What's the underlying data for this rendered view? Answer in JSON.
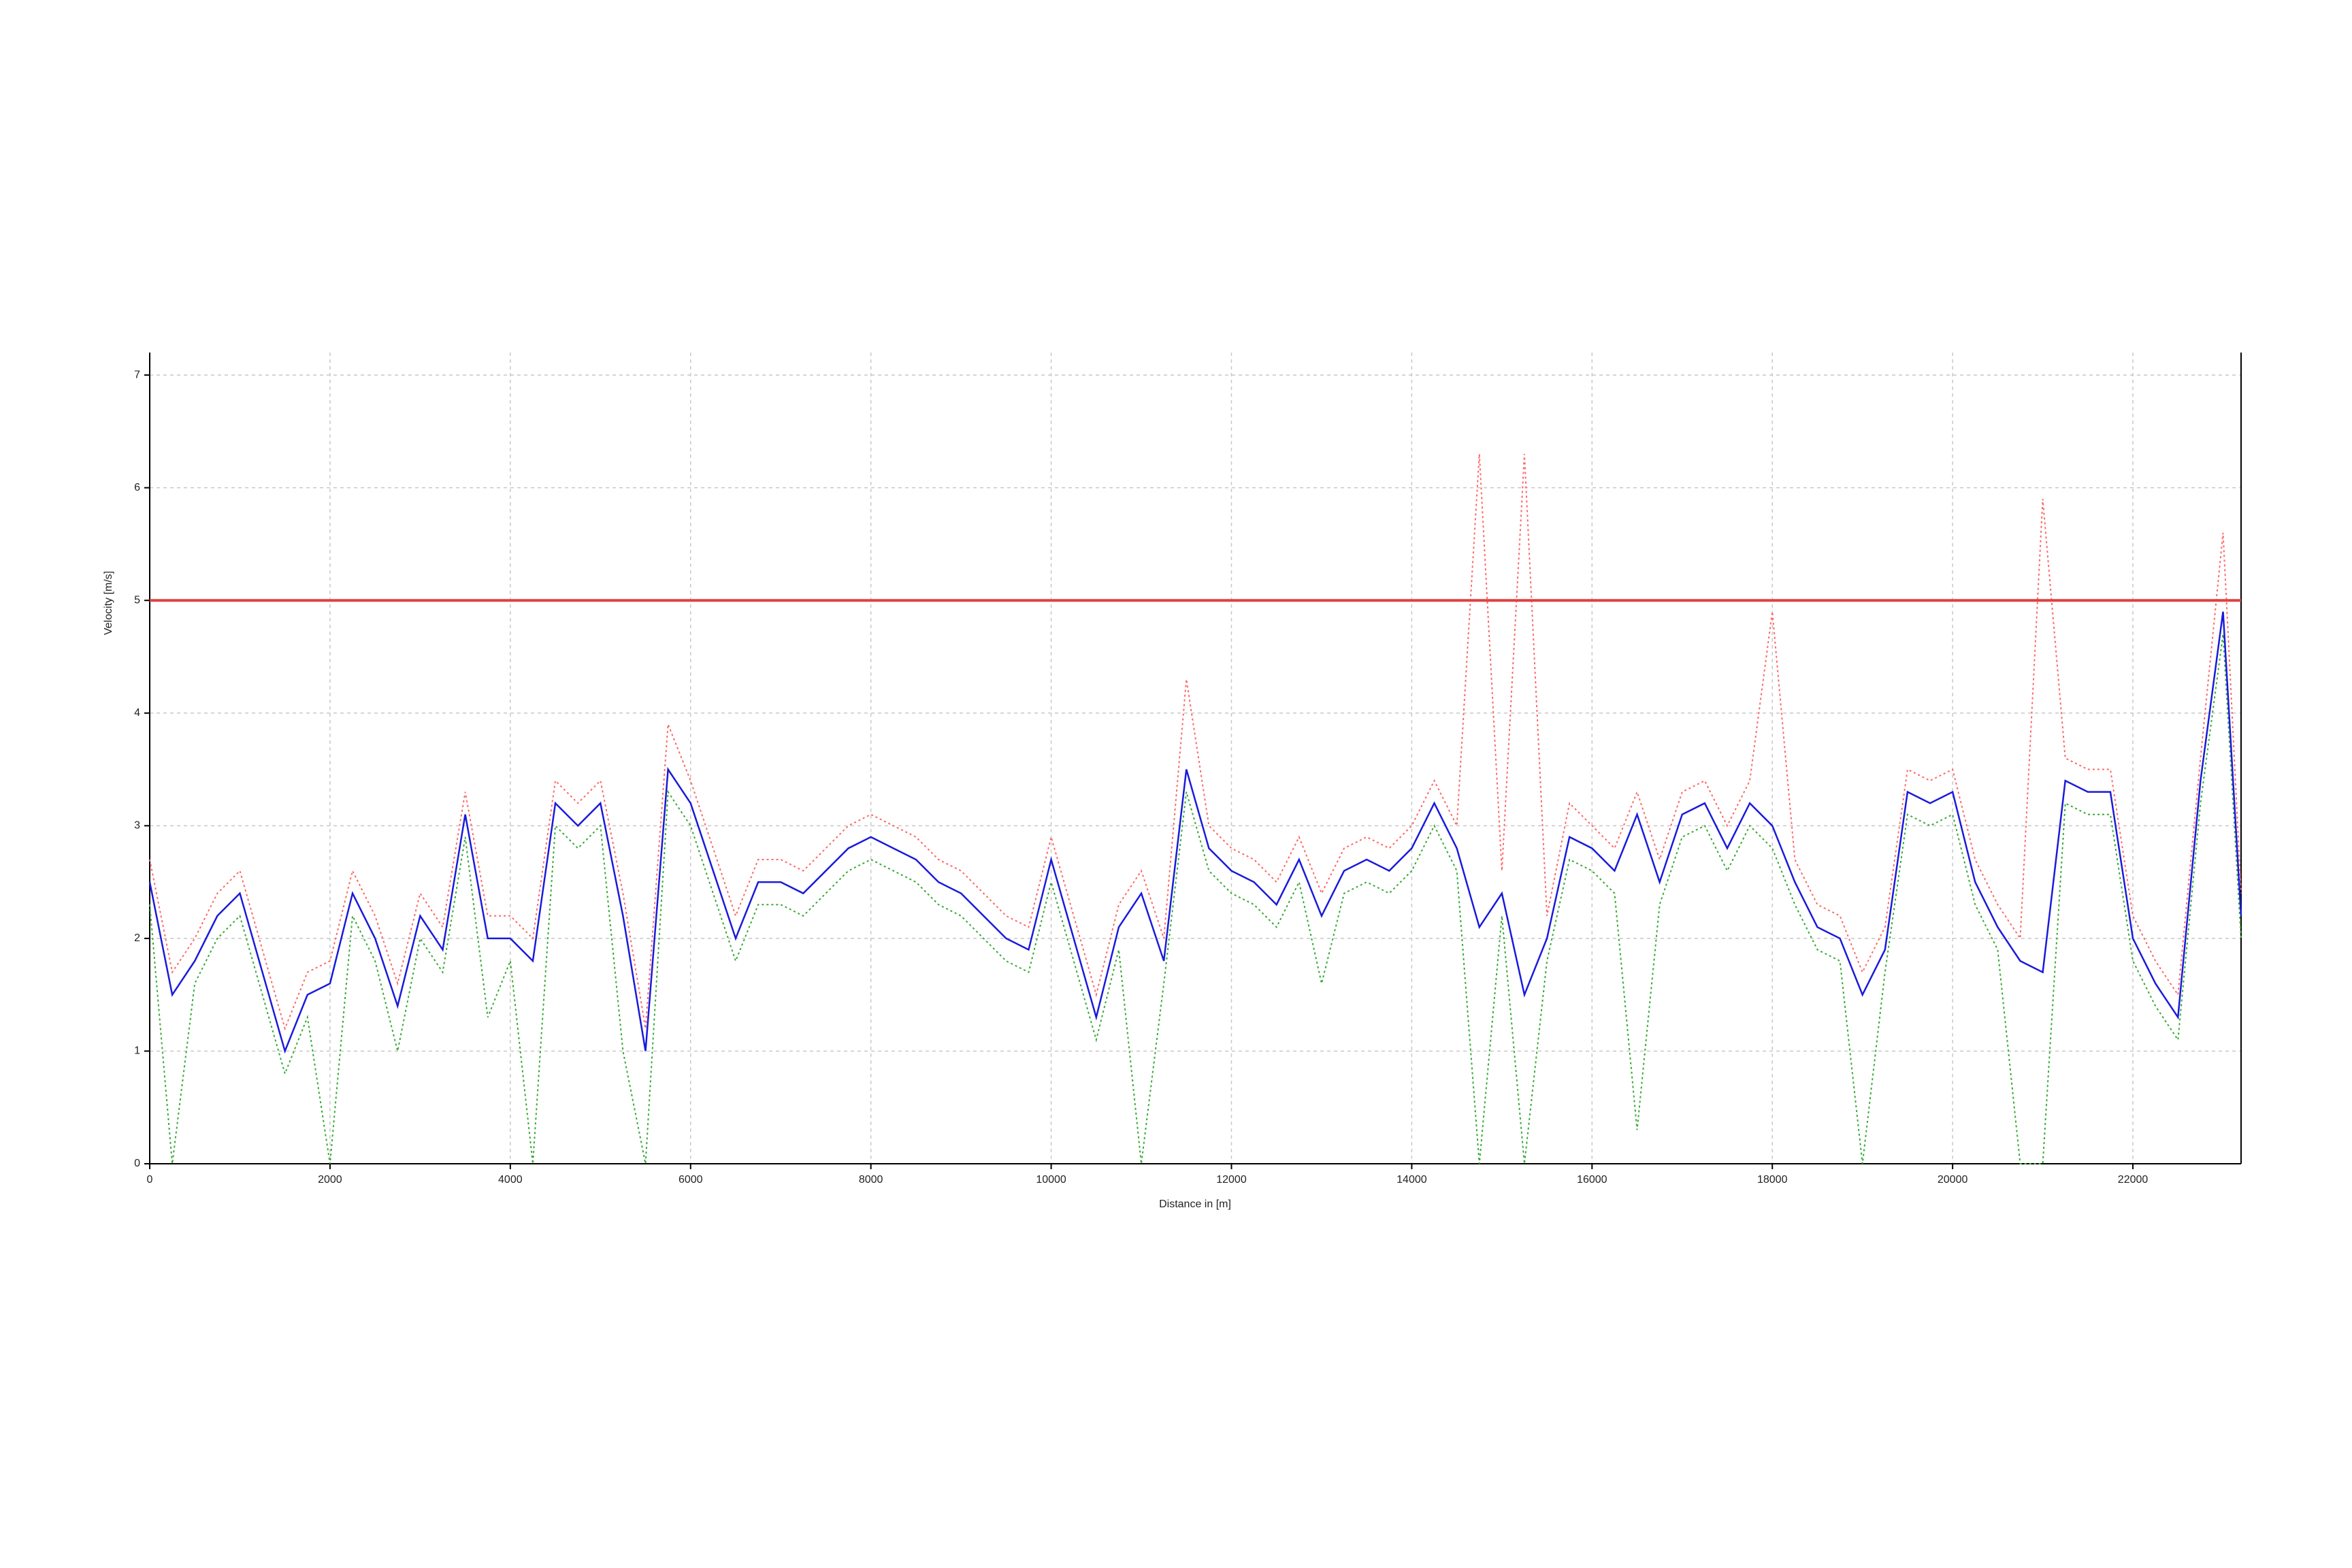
{
  "chart_data": {
    "type": "line",
    "x_label": "Distance in [m]",
    "y_label": "Velocity [m/s]",
    "x": [
      0,
      250,
      500,
      750,
      1000,
      1250,
      1500,
      1750,
      2000,
      2250,
      2500,
      2750,
      3000,
      3250,
      3500,
      3750,
      4000,
      4250,
      4500,
      4750,
      5000,
      5250,
      5500,
      5750,
      6000,
      6250,
      6500,
      6750,
      7000,
      7250,
      7500,
      7750,
      8000,
      8250,
      8500,
      8750,
      9000,
      9250,
      9500,
      9750,
      10000,
      10250,
      10500,
      10750,
      11000,
      11250,
      11500,
      11750,
      12000,
      12250,
      12500,
      12750,
      13000,
      13250,
      13500,
      13750,
      14000,
      14250,
      14500,
      14750,
      15000,
      15250,
      15500,
      15750,
      16000,
      16250,
      16500,
      16750,
      17000,
      17250,
      17500,
      17750,
      18000,
      18250,
      18500,
      18750,
      19000,
      19250,
      19500,
      19750,
      20000,
      20250,
      20500,
      20750,
      21000,
      21250,
      21500,
      21750,
      22000,
      22250,
      22500,
      22750,
      23000,
      23200
    ],
    "series": [
      {
        "color": "#ff6666",
        "dash": true,
        "values": [
          2.7,
          1.7,
          2.0,
          2.4,
          2.6,
          1.9,
          1.2,
          1.7,
          1.8,
          2.6,
          2.2,
          1.6,
          2.4,
          2.1,
          3.3,
          2.2,
          2.2,
          2.0,
          3.4,
          3.2,
          3.4,
          2.4,
          1.2,
          3.9,
          3.4,
          2.8,
          2.2,
          2.7,
          2.7,
          2.6,
          2.8,
          3.0,
          3.1,
          3.0,
          2.9,
          2.7,
          2.6,
          2.4,
          2.2,
          2.1,
          2.9,
          2.2,
          1.5,
          2.3,
          2.6,
          2.0,
          4.3,
          3.0,
          2.8,
          2.7,
          2.5,
          2.9,
          2.4,
          2.8,
          2.9,
          2.8,
          3.0,
          3.4,
          3.0,
          6.3,
          2.6,
          6.3,
          2.2,
          3.2,
          3.0,
          2.8,
          3.3,
          2.7,
          3.3,
          3.4,
          3.0,
          3.4,
          4.9,
          2.7,
          2.3,
          2.2,
          1.7,
          2.1,
          3.5,
          3.4,
          3.5,
          2.7,
          2.3,
          2.0,
          5.9,
          3.6,
          3.5,
          3.5,
          2.2,
          1.8,
          1.5,
          3.6,
          5.6,
          2.4
        ]
      },
      {
        "color": "#33aa33",
        "dash": true,
        "values": [
          2.3,
          0,
          1.6,
          2.0,
          2.2,
          1.5,
          0.8,
          1.3,
          0,
          2.2,
          1.8,
          1.0,
          2.0,
          1.7,
          2.9,
          1.3,
          1.8,
          0,
          3.0,
          2.8,
          3.0,
          1.0,
          0,
          3.3,
          3.0,
          2.4,
          1.8,
          2.3,
          2.3,
          2.2,
          2.4,
          2.6,
          2.7,
          2.6,
          2.5,
          2.3,
          2.2,
          2.0,
          1.8,
          1.7,
          2.5,
          1.8,
          1.1,
          1.9,
          0,
          1.6,
          3.3,
          2.6,
          2.4,
          2.3,
          2.1,
          2.5,
          1.6,
          2.4,
          2.5,
          2.4,
          2.6,
          3.0,
          2.6,
          0,
          2.2,
          0,
          1.8,
          2.7,
          2.6,
          2.4,
          0.3,
          2.3,
          2.9,
          3.0,
          2.6,
          3.0,
          2.8,
          2.3,
          1.9,
          1.8,
          0,
          1.7,
          3.1,
          3.0,
          3.1,
          2.3,
          1.9,
          0,
          0,
          3.2,
          3.1,
          3.1,
          1.8,
          1.4,
          1.1,
          3.2,
          4.7,
          2.0
        ]
      },
      {
        "color": "#1a1adb",
        "values": [
          2.5,
          1.5,
          1.8,
          2.2,
          2.4,
          1.7,
          1.0,
          1.5,
          1.6,
          2.4,
          2.0,
          1.4,
          2.2,
          1.9,
          3.1,
          2.0,
          2.0,
          1.8,
          3.2,
          3.0,
          3.2,
          2.2,
          1.0,
          3.5,
          3.2,
          2.6,
          2.0,
          2.5,
          2.5,
          2.4,
          2.6,
          2.8,
          2.9,
          2.8,
          2.7,
          2.5,
          2.4,
          2.2,
          2.0,
          1.9,
          2.7,
          2.0,
          1.3,
          2.1,
          2.4,
          1.8,
          3.5,
          2.8,
          2.6,
          2.5,
          2.3,
          2.7,
          2.2,
          2.6,
          2.7,
          2.6,
          2.8,
          3.2,
          2.8,
          2.1,
          2.4,
          1.5,
          2.0,
          2.9,
          2.8,
          2.6,
          3.1,
          2.5,
          3.1,
          3.2,
          2.8,
          3.2,
          3.0,
          2.5,
          2.1,
          2.0,
          1.5,
          1.9,
          3.3,
          3.2,
          3.3,
          2.5,
          2.1,
          1.8,
          1.7,
          3.4,
          3.3,
          3.3,
          2.0,
          1.6,
          1.3,
          3.4,
          4.9,
          2.2
        ]
      }
    ],
    "hline": {
      "value": 5,
      "color": "#e04040"
    },
    "xlim": [
      0,
      23200
    ],
    "ylim": [
      0,
      7.2
    ],
    "xticks": [
      0,
      2000,
      4000,
      6000,
      8000,
      10000,
      12000,
      14000,
      16000,
      18000,
      20000,
      22000
    ],
    "yticks": [
      0,
      1,
      2,
      3,
      4,
      5,
      6,
      7
    ],
    "grid": true
  }
}
